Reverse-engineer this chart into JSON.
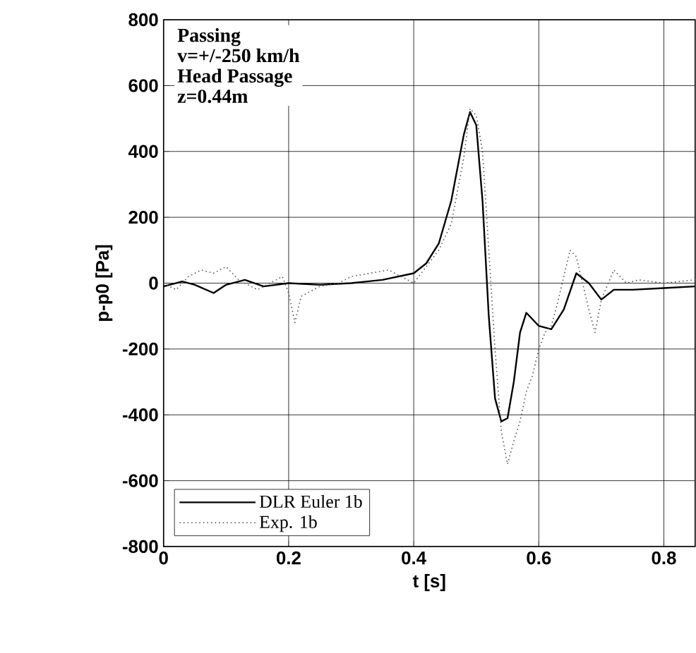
{
  "chart_data": {
    "type": "line",
    "xlabel": "t [s]",
    "ylabel": "p-p0 [Pa]",
    "annotations": [
      "Passing",
      "v=+/-250 km/h",
      "Head Passage",
      "z=0.44m"
    ],
    "xlim": [
      0,
      0.85
    ],
    "ylim": [
      -800,
      800
    ],
    "xticks": [
      {
        "value": 0,
        "label": "0"
      },
      0.2,
      0.4,
      0.6,
      0.8
    ],
    "yticks": [
      -800,
      -600,
      -400,
      -200,
      0,
      200,
      400,
      600,
      800
    ],
    "grid": true,
    "legend": "bottom left",
    "series": [
      {
        "name": "DLR Euler 1b",
        "color": "#000000",
        "line_style": "solid",
        "x": [
          0,
          0.03,
          0.05,
          0.08,
          0.1,
          0.13,
          0.16,
          0.2,
          0.25,
          0.3,
          0.35,
          0.4,
          0.42,
          0.44,
          0.46,
          0.48,
          0.49,
          0.5,
          0.51,
          0.52,
          0.53,
          0.54,
          0.55,
          0.56,
          0.57,
          0.58,
          0.6,
          0.62,
          0.64,
          0.66,
          0.68,
          0.7,
          0.72,
          0.75,
          0.8,
          0.85
        ],
        "values": [
          -10,
          5,
          -5,
          -30,
          -5,
          10,
          -10,
          0,
          -5,
          0,
          10,
          30,
          60,
          120,
          250,
          450,
          520,
          480,
          250,
          -100,
          -350,
          -420,
          -410,
          -300,
          -150,
          -90,
          -130,
          -140,
          -80,
          30,
          0,
          -50,
          -20,
          -20,
          -15,
          -10
        ]
      },
      {
        "name": "Exp. 1b",
        "color": "#555555",
        "line_style": "dotted",
        "x": [
          0,
          0.02,
          0.04,
          0.06,
          0.08,
          0.1,
          0.12,
          0.15,
          0.19,
          0.2,
          0.21,
          0.22,
          0.25,
          0.28,
          0.3,
          0.33,
          0.36,
          0.38,
          0.4,
          0.42,
          0.44,
          0.46,
          0.48,
          0.49,
          0.5,
          0.51,
          0.52,
          0.53,
          0.54,
          0.55,
          0.56,
          0.57,
          0.58,
          0.59,
          0.6,
          0.61,
          0.62,
          0.63,
          0.64,
          0.65,
          0.66,
          0.67,
          0.68,
          0.69,
          0.7,
          0.72,
          0.74,
          0.76,
          0.8,
          0.85
        ],
        "values": [
          0,
          -20,
          20,
          40,
          30,
          50,
          10,
          -20,
          20,
          -30,
          -120,
          -40,
          -10,
          0,
          20,
          30,
          40,
          20,
          0,
          50,
          100,
          180,
          380,
          530,
          510,
          400,
          100,
          -200,
          -450,
          -550,
          -480,
          -420,
          -330,
          -280,
          -200,
          -150,
          -130,
          -60,
          20,
          100,
          80,
          0,
          -80,
          -150,
          -50,
          40,
          0,
          10,
          0,
          10
        ]
      }
    ]
  }
}
